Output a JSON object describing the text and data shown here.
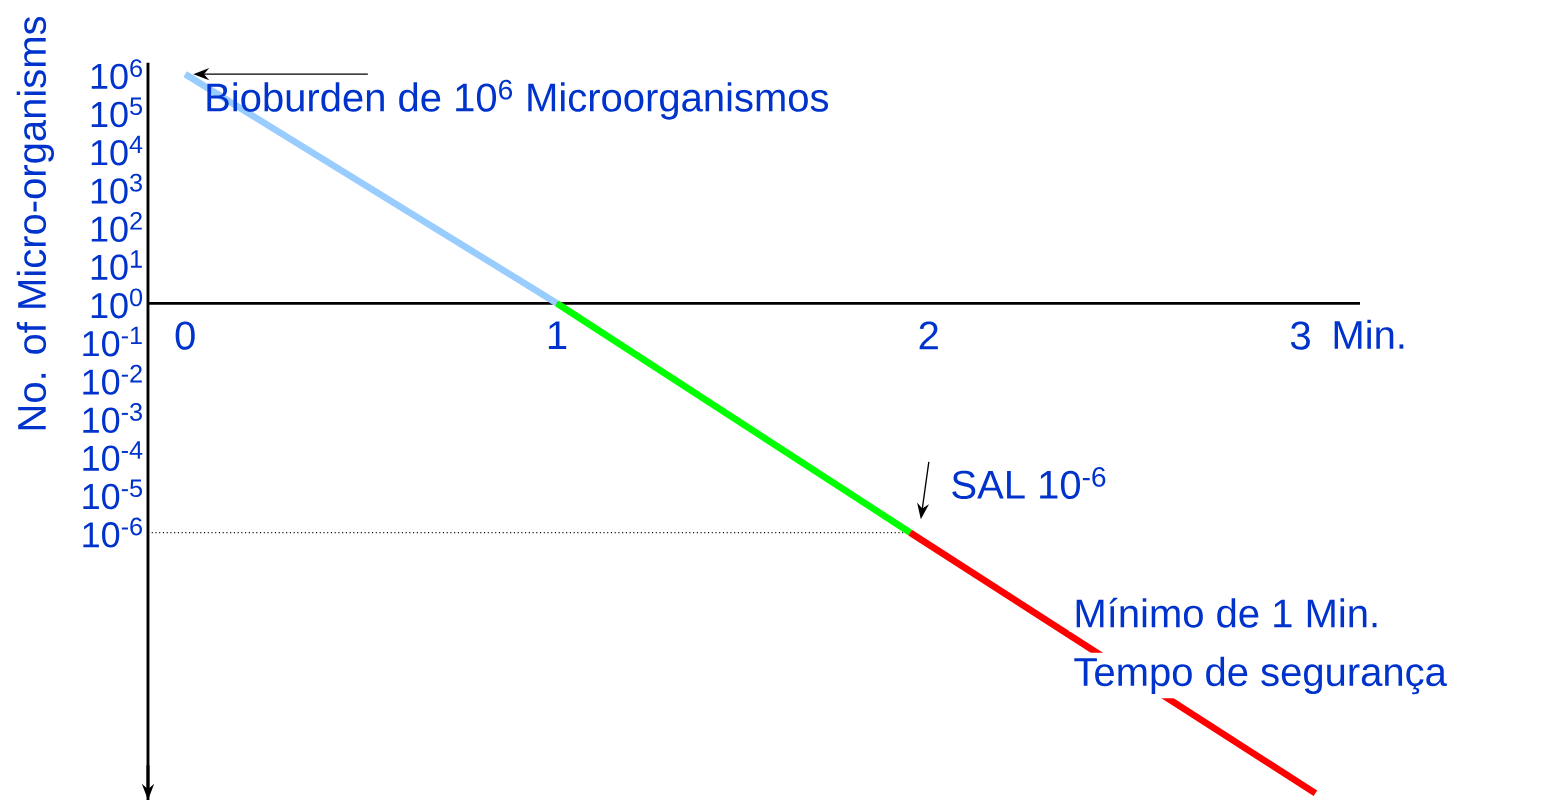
{
  "chart_data": {
    "type": "line",
    "ylabel": "No. of Micro-organisms",
    "xlabel": "Min.",
    "series": [
      {
        "color": "#99ccff",
        "x": [
          0,
          1
        ],
        "values": [
          1000000,
          1
        ]
      },
      {
        "color": "#00ff00",
        "x": [
          1,
          1.95
        ],
        "values": [
          1,
          1e-06
        ]
      },
      {
        "color": "#ff0000",
        "x": [
          1.95,
          3.04
        ],
        "values": [
          1e-06,
          1.5e-13
        ]
      }
    ],
    "xlim": [
      -0.1,
      3.16
    ],
    "ylim": [
      1e-13,
      2000000
    ],
    "log": "y",
    "marker": "none",
    "line_style": "solid",
    "xticks": [
      0,
      1,
      2,
      3
    ],
    "yticks": [
      {
        "value": 1000000,
        "label": "10$^{6}$"
      },
      {
        "value": 100000,
        "label": "10$^{5}$"
      },
      {
        "value": 10000,
        "label": "10$^{4}$"
      },
      {
        "value": 1000,
        "label": "10$^{3}$"
      },
      {
        "value": 100,
        "label": "10$^{2}$"
      },
      {
        "value": 10,
        "label": "10$^{1}$"
      },
      {
        "value": 1,
        "label": "10$^{0}$"
      },
      {
        "value": 0.1,
        "label": "10$^{-1}$"
      },
      {
        "value": 0.01,
        "label": "10$^{-2}$"
      },
      {
        "value": 0.001,
        "label": "10$^{-3}$"
      },
      {
        "value": 0.0001,
        "label": "10$^{-4}$"
      },
      {
        "value": 1e-05,
        "label": "10$^{-5}$"
      },
      {
        "value": 1e-06,
        "label": "10$^{-6}$"
      }
    ],
    "ref_lines": [
      {
        "axis": "y",
        "value": 1e-06,
        "line_style": "dotted"
      }
    ],
    "annotations": [
      {
        "text": "Bioburden de 10$^{6}$ Microorganismos",
        "x": 0,
        "y": 1000000
      },
      {
        "text": "SAL 10$^{-6}$",
        "x": 1.95,
        "y": 1e-06
      },
      "Mínimo de 1 Min.",
      "Tempo de segurança"
    ]
  }
}
